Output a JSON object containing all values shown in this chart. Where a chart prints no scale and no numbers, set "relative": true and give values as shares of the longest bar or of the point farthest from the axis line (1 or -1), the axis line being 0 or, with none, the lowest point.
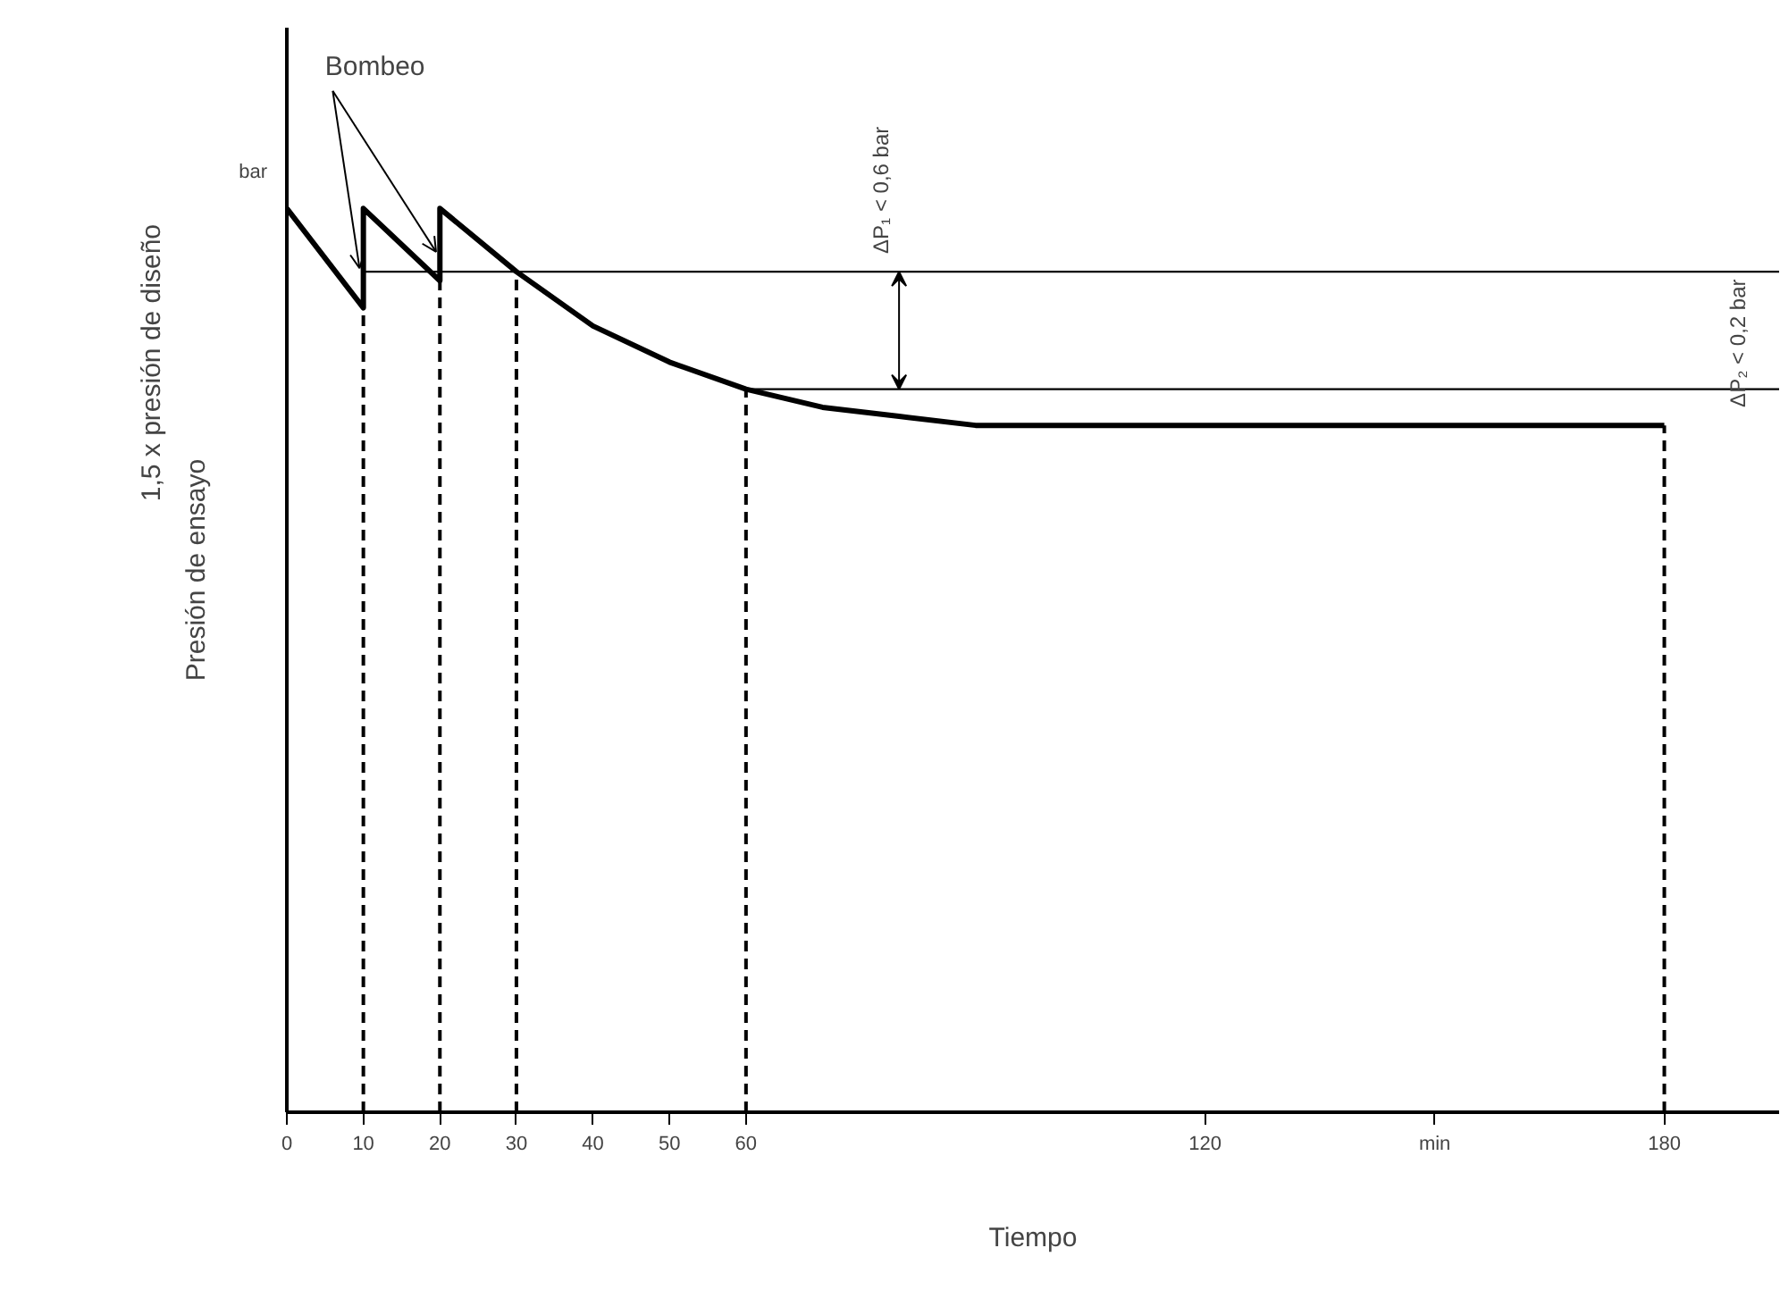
{
  "chart_data": {
    "type": "line",
    "relative": true,
    "xlabel": "Tiempo",
    "ylabel": "Presión de ensayo",
    "x": [
      0,
      10,
      10,
      20,
      20,
      30,
      40,
      50,
      60,
      70,
      80,
      90,
      120,
      150,
      180
    ],
    "series": [
      {
        "color": "#000000",
        "values": [
          1.0,
          0.89,
          1.0,
          0.92,
          1.0,
          0.93,
          0.87,
          0.83,
          0.8,
          0.78,
          0.77,
          0.76,
          0.76,
          0.76,
          0.76
        ]
      }
    ],
    "xlim": [
      0,
      195
    ],
    "xticks": [
      0,
      10,
      20,
      30,
      40,
      50,
      60,
      120,
      {
        "value": 150,
        "label": "min"
      },
      180
    ],
    "tick_labels": "x",
    "grid": false,
    "marker": "none",
    "line_style": "solid",
    "ref_lines": [
      {
        "axis": "x",
        "value": 10,
        "line_style": "dashed",
        "color": "#000000"
      },
      {
        "axis": "x",
        "value": 20,
        "line_style": "dashed",
        "color": "#000000"
      },
      {
        "axis": "x",
        "value": 30,
        "line_style": "dashed",
        "color": "#000000"
      },
      {
        "axis": "x",
        "value": 60,
        "line_style": "dashed",
        "color": "#000000"
      },
      {
        "axis": "x",
        "value": 180,
        "line_style": "dashed",
        "color": "#000000"
      },
      {
        "axis": "y",
        "value": 0.93,
        "line_style": "solid",
        "color": "#000000"
      },
      {
        "axis": "y",
        "value": 0.8,
        "line_style": "solid",
        "color": "#000000"
      }
    ],
    "annotations": [
      "Bombeo",
      "bar",
      "1,5 x presión de diseño",
      "ΔP₁ < 0,6 bar",
      "ΔP₂ < 0,2 bar"
    ]
  }
}
